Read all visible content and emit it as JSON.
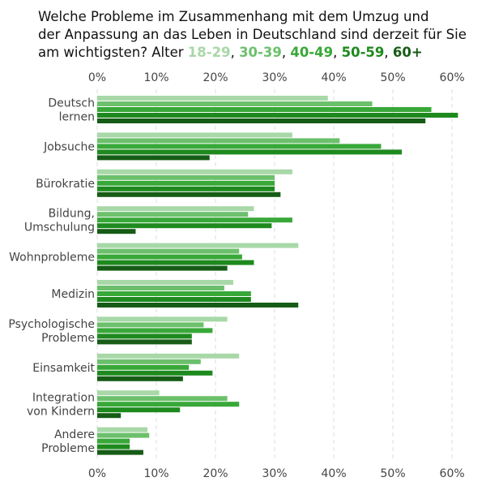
{
  "chart_data": {
    "type": "bar",
    "orientation": "horizontal",
    "title_lines": [
      "Welche Probleme im Zusammenhang mit dem Umzug und",
      "der Anpassung an das Leben in Deutschland sind derzeit für Sie",
      "am wichtigsten? Alter"
    ],
    "categories": [
      "Deutsch lernen",
      "Jobsuche",
      "Bürokratie",
      "Bildung, Umschulung",
      "Wohnprobleme",
      "Medizin",
      "Psychologische Probleme",
      "Einsamkeit",
      "Integration von Kindern",
      "Andere Probleme"
    ],
    "category_label_lines": [
      [
        "Deutsch",
        "lernen"
      ],
      [
        "Jobsuche"
      ],
      [
        "Bürokratie"
      ],
      [
        "Bildung,",
        "Umschulung"
      ],
      [
        "Wohnprobleme"
      ],
      [
        "Medizin"
      ],
      [
        "Psychologische",
        "Probleme"
      ],
      [
        "Einsamkeit"
      ],
      [
        "Integration",
        "von Kindern"
      ],
      [
        "Andere",
        "Probleme"
      ]
    ],
    "series": [
      {
        "name": "18-29",
        "color": "#a8d8a8",
        "values": [
          39,
          33,
          33,
          26.5,
          34,
          23,
          22,
          24,
          10.5,
          8.5
        ]
      },
      {
        "name": "30-39",
        "color": "#6cc06c",
        "values": [
          46.5,
          41,
          30,
          25.5,
          24,
          21.5,
          18,
          17.5,
          22,
          8.8
        ]
      },
      {
        "name": "40-49",
        "color": "#38a838",
        "values": [
          56.5,
          48,
          30,
          33,
          24.5,
          26,
          19.5,
          15.5,
          24,
          5.5
        ]
      },
      {
        "name": "50-59",
        "color": "#1e8a1e",
        "values": [
          61,
          51.5,
          30,
          29.5,
          26.5,
          26,
          16,
          19.5,
          14,
          5.5
        ]
      },
      {
        "name": "60+",
        "color": "#165c16",
        "values": [
          55.5,
          19,
          31,
          6.5,
          22,
          34,
          16,
          14.5,
          4,
          7.8
        ]
      }
    ],
    "xlim": [
      0,
      63
    ],
    "xticks": [
      0,
      10,
      20,
      30,
      40,
      50,
      60
    ],
    "xtick_labels": [
      "0%",
      "10%",
      "20%",
      "30%",
      "40%",
      "50%",
      "60%"
    ],
    "grid": "vertical dashed",
    "legend": "inline in title"
  }
}
